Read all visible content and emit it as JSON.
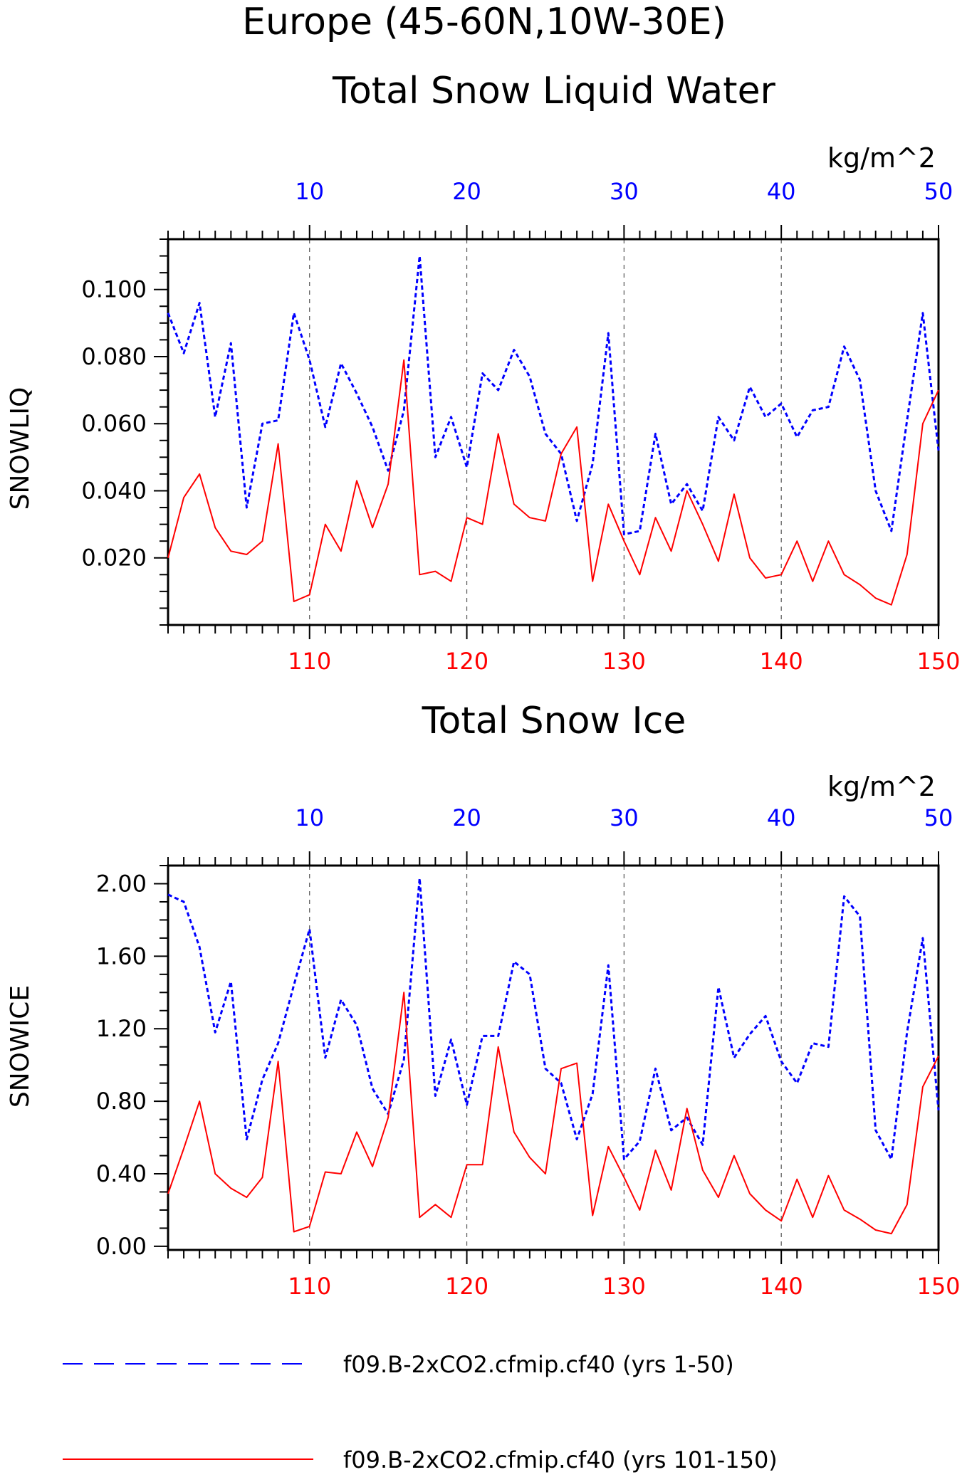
{
  "main_title": "Europe (45-60N,10W-30E)",
  "colors": {
    "series_a": "#0000ff",
    "series_b": "#ff0000",
    "axis": "#000000",
    "grid": "#555555"
  },
  "chart_data": [
    {
      "type": "line",
      "title": "Total Snow Liquid Water",
      "ylabel": "SNOWLIQ",
      "top_axis_unit": "kg/m^2",
      "top_axis": {
        "range": [
          1,
          50
        ],
        "ticks": [
          10,
          20,
          30,
          40,
          50
        ],
        "tick_labels": [
          "10",
          "20",
          "30",
          "40",
          "50"
        ]
      },
      "bottom_axis": {
        "range": [
          101,
          150
        ],
        "ticks": [
          110,
          120,
          130,
          140,
          150
        ],
        "tick_labels": [
          "110",
          "120",
          "130",
          "140",
          "150"
        ]
      },
      "ylim": [
        0.0,
        0.115
      ],
      "yticks": [
        0.02,
        0.04,
        0.06,
        0.08,
        0.1
      ],
      "ytick_labels": [
        "0.020",
        "0.040",
        "0.060",
        "0.080",
        "0.100"
      ],
      "grid": "vertical dashed at x ticks",
      "series": [
        {
          "name": "f09.B-2xCO2.cfmip.cf40 (yrs 1-50)",
          "style": "dashed",
          "x": [
            1,
            2,
            3,
            4,
            5,
            6,
            7,
            8,
            9,
            10,
            11,
            12,
            13,
            14,
            15,
            16,
            17,
            18,
            19,
            20,
            21,
            22,
            23,
            24,
            25,
            26,
            27,
            28,
            29,
            30,
            31,
            32,
            33,
            34,
            35,
            36,
            37,
            38,
            39,
            40,
            41,
            42,
            43,
            44,
            45,
            46,
            47,
            48,
            49,
            50
          ],
          "values": [
            0.093,
            0.081,
            0.096,
            0.062,
            0.084,
            0.035,
            0.06,
            0.061,
            0.093,
            0.079,
            0.059,
            0.078,
            0.069,
            0.059,
            0.046,
            0.064,
            0.11,
            0.05,
            0.062,
            0.047,
            0.075,
            0.07,
            0.082,
            0.074,
            0.057,
            0.051,
            0.031,
            0.048,
            0.087,
            0.027,
            0.028,
            0.057,
            0.036,
            0.042,
            0.034,
            0.062,
            0.055,
            0.071,
            0.062,
            0.066,
            0.056,
            0.064,
            0.065,
            0.083,
            0.073,
            0.04,
            0.028,
            0.061,
            0.093,
            0.052
          ]
        },
        {
          "name": "f09.B-2xCO2.cfmip.cf40 (yrs 101-150)",
          "style": "solid",
          "x": [
            101,
            102,
            103,
            104,
            105,
            106,
            107,
            108,
            109,
            110,
            111,
            112,
            113,
            114,
            115,
            116,
            117,
            118,
            119,
            120,
            121,
            122,
            123,
            124,
            125,
            126,
            127,
            128,
            129,
            130,
            131,
            132,
            133,
            134,
            135,
            136,
            137,
            138,
            139,
            140,
            141,
            142,
            143,
            144,
            145,
            146,
            147,
            148,
            149,
            150
          ],
          "values": [
            0.02,
            0.038,
            0.045,
            0.029,
            0.022,
            0.021,
            0.025,
            0.054,
            0.007,
            0.009,
            0.03,
            0.022,
            0.043,
            0.029,
            0.042,
            0.079,
            0.015,
            0.016,
            0.013,
            0.032,
            0.03,
            0.057,
            0.036,
            0.032,
            0.031,
            0.051,
            0.059,
            0.013,
            0.036,
            0.025,
            0.015,
            0.032,
            0.022,
            0.04,
            0.03,
            0.019,
            0.039,
            0.02,
            0.014,
            0.015,
            0.025,
            0.013,
            0.025,
            0.015,
            0.012,
            0.008,
            0.006,
            0.021,
            0.06,
            0.07
          ]
        }
      ]
    },
    {
      "type": "line",
      "title": "Total Snow Ice",
      "ylabel": "SNOWICE",
      "top_axis_unit": "kg/m^2",
      "top_axis": {
        "range": [
          1,
          50
        ],
        "ticks": [
          10,
          20,
          30,
          40,
          50
        ],
        "tick_labels": [
          "10",
          "20",
          "30",
          "40",
          "50"
        ]
      },
      "bottom_axis": {
        "range": [
          101,
          150
        ],
        "ticks": [
          110,
          120,
          130,
          140,
          150
        ],
        "tick_labels": [
          "110",
          "120",
          "130",
          "140",
          "150"
        ]
      },
      "ylim": [
        -0.02,
        2.1
      ],
      "yticks": [
        0.0,
        0.4,
        0.8,
        1.2,
        1.6,
        2.0
      ],
      "ytick_labels": [
        "0.00",
        "0.40",
        "0.80",
        "1.20",
        "1.60",
        "2.00"
      ],
      "grid": "vertical dashed at x ticks",
      "series": [
        {
          "name": "f09.B-2xCO2.cfmip.cf40 (yrs 1-50)",
          "style": "dashed",
          "x": [
            1,
            2,
            3,
            4,
            5,
            6,
            7,
            8,
            9,
            10,
            11,
            12,
            13,
            14,
            15,
            16,
            17,
            18,
            19,
            20,
            21,
            22,
            23,
            24,
            25,
            26,
            27,
            28,
            29,
            30,
            31,
            32,
            33,
            34,
            35,
            36,
            37,
            38,
            39,
            40,
            41,
            42,
            43,
            44,
            45,
            46,
            47,
            48,
            49,
            50
          ],
          "values": [
            1.94,
            1.9,
            1.65,
            1.18,
            1.46,
            0.59,
            0.92,
            1.12,
            1.44,
            1.75,
            1.04,
            1.36,
            1.22,
            0.87,
            0.73,
            1.03,
            2.03,
            0.83,
            1.14,
            0.78,
            1.16,
            1.16,
            1.57,
            1.5,
            0.98,
            0.9,
            0.59,
            0.84,
            1.55,
            0.48,
            0.58,
            0.98,
            0.64,
            0.71,
            0.56,
            1.43,
            1.04,
            1.17,
            1.27,
            1.02,
            0.9,
            1.12,
            1.1,
            1.93,
            1.82,
            0.64,
            0.48,
            1.18,
            1.7,
            0.75
          ]
        },
        {
          "name": "f09.B-2xCO2.cfmip.cf40 (yrs 101-150)",
          "style": "solid",
          "x": [
            101,
            102,
            103,
            104,
            105,
            106,
            107,
            108,
            109,
            110,
            111,
            112,
            113,
            114,
            115,
            116,
            117,
            118,
            119,
            120,
            121,
            122,
            123,
            124,
            125,
            126,
            127,
            128,
            129,
            130,
            131,
            132,
            133,
            134,
            135,
            136,
            137,
            138,
            139,
            140,
            141,
            142,
            143,
            144,
            145,
            146,
            147,
            148,
            149,
            150
          ],
          "values": [
            0.29,
            0.54,
            0.8,
            0.4,
            0.32,
            0.27,
            0.38,
            1.02,
            0.08,
            0.11,
            0.41,
            0.4,
            0.63,
            0.44,
            0.71,
            1.4,
            0.16,
            0.23,
            0.16,
            0.45,
            0.45,
            1.1,
            0.63,
            0.49,
            0.4,
            0.98,
            1.01,
            0.17,
            0.55,
            0.38,
            0.2,
            0.53,
            0.31,
            0.76,
            0.42,
            0.27,
            0.5,
            0.29,
            0.2,
            0.14,
            0.37,
            0.16,
            0.39,
            0.2,
            0.15,
            0.09,
            0.07,
            0.23,
            0.88,
            1.05
          ]
        }
      ]
    }
  ],
  "legend": [
    {
      "label": "f09.B-2xCO2.cfmip.cf40 (yrs 1-50)",
      "style": "dashed",
      "color": "#0000ff"
    },
    {
      "label": "f09.B-2xCO2.cfmip.cf40 (yrs 101-150)",
      "style": "solid",
      "color": "#ff0000"
    }
  ]
}
